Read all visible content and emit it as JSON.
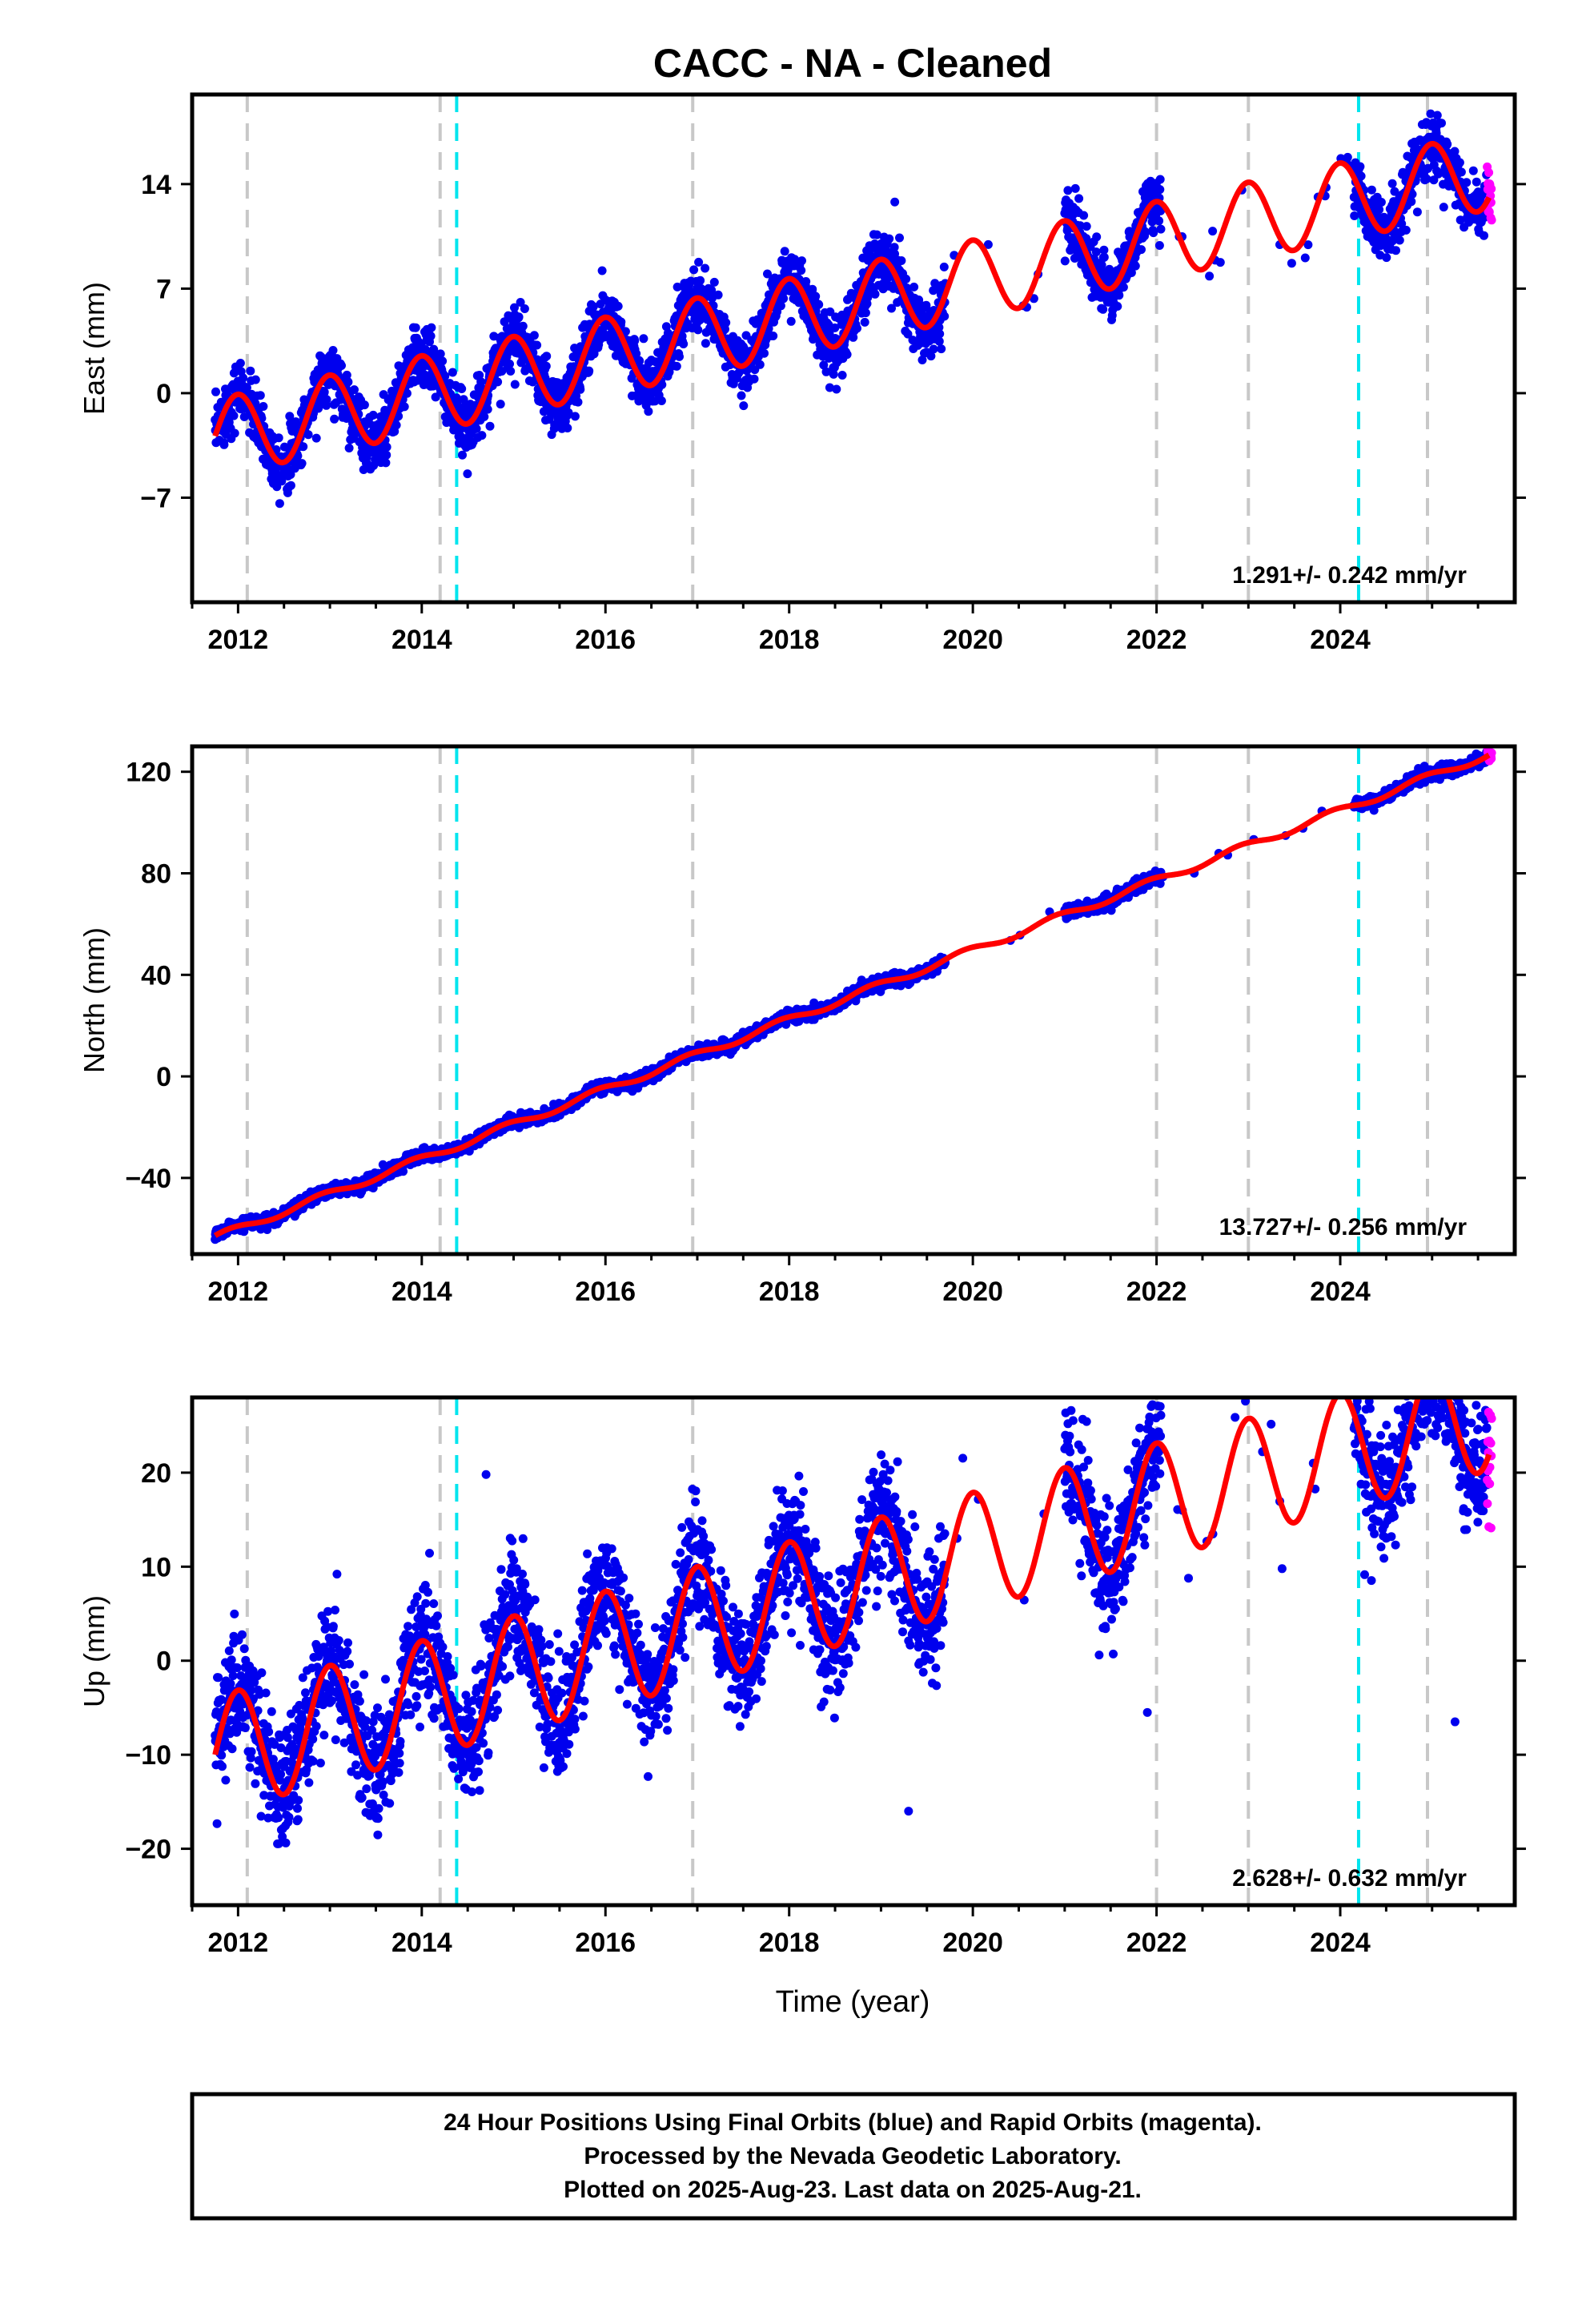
{
  "figure": {
    "title": "CACC  - NA - Cleaned",
    "xlabel": "Time (year)",
    "footer": [
      "24 Hour Positions Using Final Orbits (blue) and Rapid Orbits (magenta).",
      "Processed by the Nevada Geodetic Laboratory.",
      "Plotted on 2025-Aug-23. Last data on 2025-Aug-21."
    ]
  },
  "colors": {
    "final_orbits": "#0000ee",
    "rapid_orbits": "#ff00ff",
    "model_fit": "#ff0000",
    "equipment_change": "#c8c8c8",
    "earthquake": "#00e5ee"
  },
  "chart_data": [
    {
      "type": "scatter",
      "ylabel": "East (mm)",
      "xlim": [
        2011.5,
        2025.9
      ],
      "ylim": [
        -14,
        20
      ],
      "yticks": [
        -7,
        0,
        7,
        14
      ],
      "xticks": [
        2012,
        2014,
        2016,
        2018,
        2020,
        2022,
        2024
      ],
      "rate_label": "1.291+/- 0.242 mm/yr",
      "model": {
        "base": -3.0,
        "slope": 1.291,
        "amp": 2.6,
        "phase": 0.05
      },
      "gray_lines": [
        2012.1,
        2014.2,
        2016.95,
        2022.0,
        2023.0,
        2024.95
      ],
      "cyan_lines": [
        2014.38,
        2024.2
      ],
      "noise": 1.0,
      "gaps": [
        [
          2019.7,
          2021.0
        ],
        [
          2022.05,
          2024.15
        ]
      ],
      "outliers": [
        {
          "x": 2019.15,
          "y": 12.8
        }
      ],
      "rapid_range": [
        2025.6,
        2025.65
      ]
    },
    {
      "type": "scatter",
      "ylabel": "North (mm)",
      "xlim": [
        2011.5,
        2025.9
      ],
      "ylim": [
        -70,
        130
      ],
      "yticks": [
        -40,
        0,
        40,
        80,
        120
      ],
      "xticks": [
        2012,
        2014,
        2016,
        2018,
        2020,
        2022,
        2024
      ],
      "rate_label": "13.727+/- 0.256 mm/yr",
      "model": {
        "base": -63.5,
        "slope": 13.727,
        "amp": 1.4,
        "phase": 0.6
      },
      "gray_lines": [
        2012.1,
        2014.2,
        2016.95,
        2022.0,
        2023.0,
        2024.95
      ],
      "cyan_lines": [
        2014.38,
        2024.2
      ],
      "noise": 1.2,
      "gaps": [
        [
          2019.7,
          2021.0
        ],
        [
          2022.05,
          2024.15
        ]
      ],
      "outliers": [],
      "rapid_range": [
        2025.6,
        2025.65
      ]
    },
    {
      "type": "scatter",
      "ylabel": "Up (mm)",
      "xlim": [
        2011.5,
        2025.9
      ],
      "ylim": [
        -26,
        28
      ],
      "yticks": [
        -20,
        -10,
        0,
        10,
        20
      ],
      "xticks": [
        2012,
        2014,
        2016,
        2018,
        2020,
        2022,
        2024
      ],
      "rate_label": "2.628+/- 0.632 mm/yr",
      "model": {
        "base": -10.0,
        "slope": 2.628,
        "amp": 6.2,
        "phase": 0.0
      },
      "gray_lines": [
        2012.1,
        2014.2,
        2016.95,
        2022.0,
        2023.0,
        2024.95
      ],
      "cyan_lines": [
        2014.38,
        2024.2
      ],
      "noise": 3.2,
      "gaps": [
        [
          2019.7,
          2021.0
        ],
        [
          2022.05,
          2024.15
        ]
      ],
      "outliers": [
        {
          "x": 2014.7,
          "y": 19.8
        },
        {
          "x": 2019.3,
          "y": -16.0
        },
        {
          "x": 2021.9,
          "y": -5.5
        },
        {
          "x": 2025.25,
          "y": -6.5
        }
      ],
      "rapid_range": [
        2025.6,
        2025.65
      ]
    }
  ]
}
